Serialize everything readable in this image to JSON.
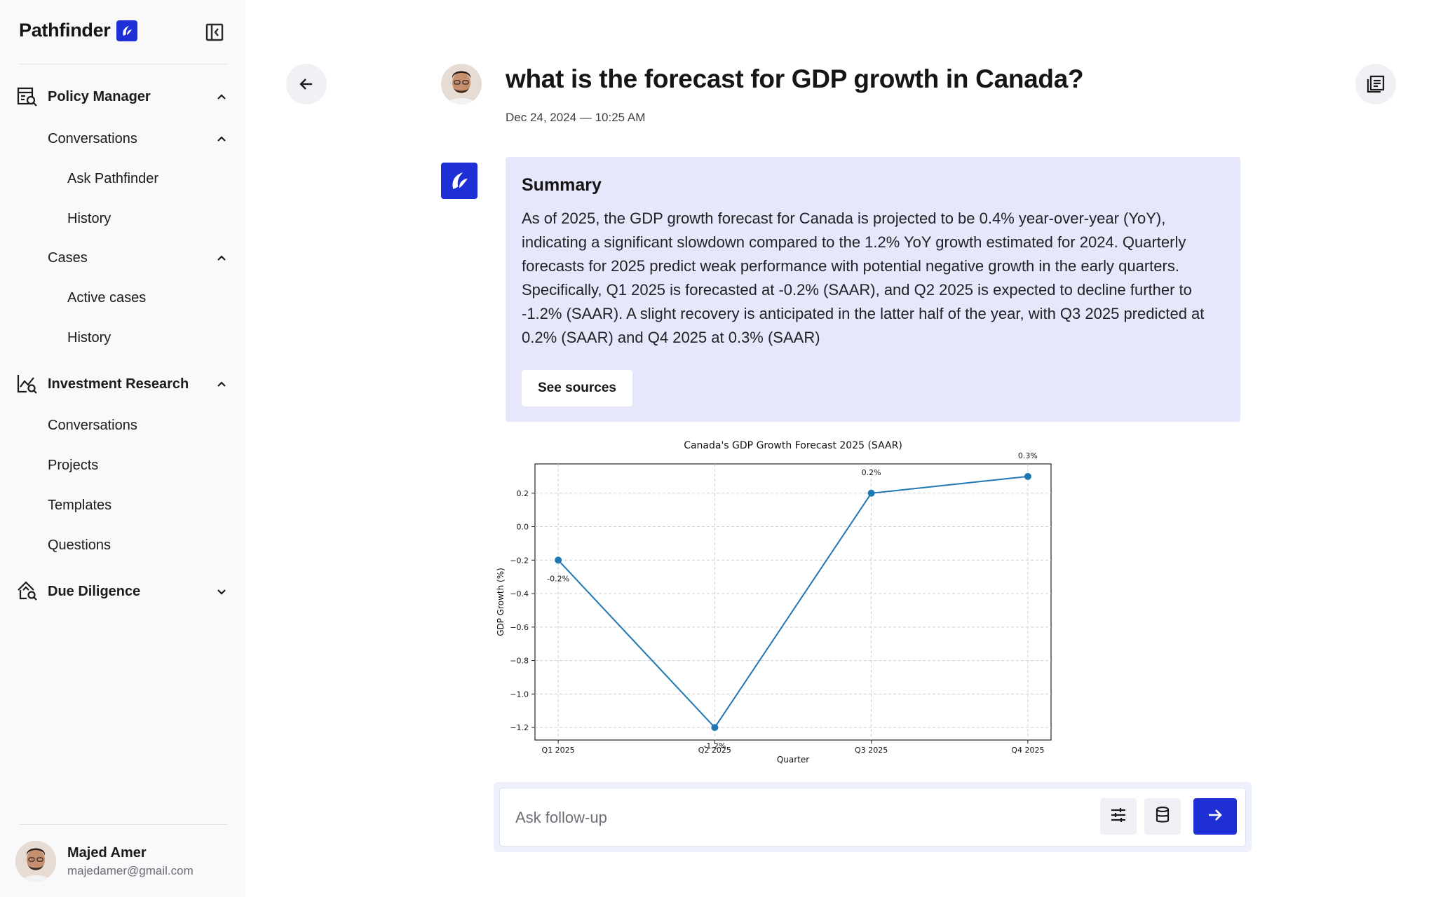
{
  "brand": {
    "name": "Pathfinder"
  },
  "sidebar": {
    "sections": [
      {
        "label": "Policy Manager",
        "icon": "policy-search-icon",
        "expanded": true,
        "groups": [
          {
            "label": "Conversations",
            "expanded": true,
            "items": [
              "Ask Pathfinder",
              "History"
            ]
          },
          {
            "label": "Cases",
            "expanded": true,
            "items": [
              "Active cases",
              "History"
            ]
          }
        ]
      },
      {
        "label": "Investment Research",
        "icon": "chart-search-icon",
        "expanded": true,
        "items": [
          "Conversations",
          "Projects",
          "Templates",
          "Questions"
        ]
      },
      {
        "label": "Due Diligence",
        "icon": "diligence-search-icon",
        "expanded": false
      }
    ]
  },
  "user": {
    "name": "Majed Amer",
    "email": "majedamer@gmail.com"
  },
  "conversation": {
    "question": "what is the forecast for GDP growth in Canada?",
    "timestamp": "Dec 24, 2024 — 10:25 AM"
  },
  "summary": {
    "title": "Summary",
    "text": "As of 2025, the GDP growth forecast for Canada is projected to be 0.4% year-over-year (YoY), indicating a significant slowdown compared to the 1.2% YoY growth estimated for 2024. Quarterly forecasts for 2025 predict weak performance with potential negative growth in the early quarters. Specifically, Q1 2025 is forecasted at -0.2% (SAAR), and Q2 2025 is expected to decline further to -1.2% (SAAR). A slight recovery is anticipated in the latter half of the year, with Q3 2025 predicted at 0.2% (SAAR) and Q4 2025 at 0.3% (SAAR)",
    "sources_label": "See sources"
  },
  "chart_data": {
    "type": "line",
    "title": "Canada's GDP Growth Forecast 2025 (SAAR)",
    "xlabel": "Quarter",
    "ylabel": "GDP Growth (%)",
    "categories": [
      "Q1 2025",
      "Q2 2025",
      "Q3 2025",
      "Q4 2025"
    ],
    "values": [
      -0.2,
      -1.2,
      0.2,
      0.3
    ],
    "data_labels": [
      "-0.2%",
      "-1.2%",
      "0.2%",
      "0.3%"
    ],
    "yticks": [
      0.2,
      0.0,
      -0.2,
      -0.4,
      -0.6,
      -0.8,
      -1.0,
      -1.2
    ],
    "ytick_labels": [
      "0.2",
      "0.0",
      "−0.2",
      "−0.4",
      "−0.6",
      "−0.8",
      "−1.0",
      "−1.2"
    ],
    "ylim": [
      -1.275,
      0.375
    ],
    "grid": true,
    "color": "#1f77b4"
  },
  "composer": {
    "placeholder": "Ask follow-up"
  },
  "colors": {
    "accent": "#1f2fd6",
    "summary_bg": "#e6e7fb"
  }
}
